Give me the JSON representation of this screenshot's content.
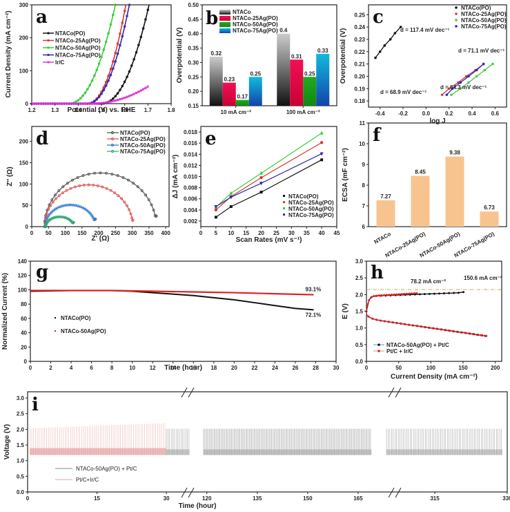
{
  "chart_data": [
    {
      "id": "a",
      "type": "line",
      "panel_label": "a",
      "xlabel": "Potential (V) vs. RHE",
      "ylabel": "Current Density (mA cm⁻²)",
      "xlim": [
        1.2,
        1.8
      ],
      "ylim": [
        0,
        300
      ],
      "xticks": [
        1.2,
        1.3,
        1.4,
        1.5,
        1.6,
        1.7,
        1.8
      ],
      "yticks": [
        0,
        100,
        200,
        300
      ],
      "legend": "top-left",
      "series": [
        {
          "name": "NTACo(PO)",
          "color": "#111111",
          "onset": 1.5,
          "end": 1.705,
          "endY": 300
        },
        {
          "name": "NTACo-25Ag(PO)",
          "color": "#e03030",
          "onset": 1.44,
          "end": 1.605,
          "endY": 300
        },
        {
          "name": "NTACo-50Ag(PO)",
          "color": "#33cc33",
          "onset": 1.36,
          "end": 1.56,
          "endY": 300
        },
        {
          "name": "NTACo-75Ag(PO)",
          "color": "#2a2ab0",
          "onset": 1.44,
          "end": 1.62,
          "endY": 300
        },
        {
          "name": "Ir/C",
          "color": "#dd33dd",
          "onset": 1.45,
          "end": 1.7,
          "endY": 52
        }
      ]
    },
    {
      "id": "b",
      "type": "bar",
      "panel_label": "b",
      "ylabel": "Overpotential (V)",
      "ylim": [
        0.15,
        0.5
      ],
      "yticks": [
        0.15,
        0.2,
        0.25,
        0.3,
        0.35,
        0.4,
        0.45,
        0.5
      ],
      "categories": [
        "10 mA cm⁻²",
        "100 mA cm⁻²"
      ],
      "legend": "top",
      "series": [
        {
          "name": "NTACo",
          "color": "#888888",
          "values": [
            0.32,
            0.4
          ]
        },
        {
          "name": "NTACo-25Ag(PO)",
          "color": "#ee1155",
          "values": [
            0.23,
            0.31
          ]
        },
        {
          "name": "NTACo-50Ag(PO)",
          "color": "#22aa22",
          "values": [
            0.17,
            0.25
          ]
        },
        {
          "name": "NTACo-75Ag(PO)",
          "color": "#11bbdd",
          "values": [
            0.25,
            0.33
          ]
        }
      ],
      "value_labels": [
        [
          "0.32",
          "0.4"
        ],
        [
          "0.23",
          "0.31"
        ],
        [
          "0.17",
          "0.25"
        ],
        [
          "0.25",
          "0.33"
        ]
      ]
    },
    {
      "id": "c",
      "type": "line",
      "panel_label": "c",
      "xlabel": "log J",
      "ylabel": "Overpotential (V)",
      "xlim": [
        -0.5,
        0.7
      ],
      "ylim": [
        0.175,
        0.258
      ],
      "xticks": [
        -0.4,
        -0.2,
        0.0,
        0.2,
        0.4,
        0.6
      ],
      "yticks": [
        0.18,
        0.19,
        0.2,
        0.21,
        0.22,
        0.23,
        0.24,
        0.25
      ],
      "legend": "top-right",
      "series": [
        {
          "name": "NTACo(PO)",
          "color": "#111111",
          "x": [
            -0.44,
            -0.4,
            -0.36,
            -0.31,
            -0.27,
            -0.22
          ],
          "y": [
            0.215,
            0.22,
            0.225,
            0.23,
            0.235,
            0.24
          ],
          "label": "d = 117.4 mV dec⁻¹"
        },
        {
          "name": "NTACo-25Ag(PO)",
          "color": "#dd3344",
          "x": [
            0.14,
            0.2,
            0.28,
            0.35,
            0.43,
            0.5
          ],
          "y": [
            0.185,
            0.19,
            0.195,
            0.2,
            0.205,
            0.21
          ],
          "label": "d = 68.9 mV dec⁻¹"
        },
        {
          "name": "NTACo-50Ag(PO)",
          "color": "#44cc44",
          "x": [
            0.22,
            0.3,
            0.37,
            0.44,
            0.51,
            0.58
          ],
          "y": [
            0.185,
            0.19,
            0.195,
            0.2,
            0.205,
            0.21
          ],
          "label": "d = 64.3 mV dec⁻¹"
        },
        {
          "name": "NTACo-75Ag(PO)",
          "color": "#2a2ab0",
          "x": [
            0.18,
            0.23,
            0.3,
            0.37,
            0.44,
            0.5
          ],
          "y": [
            0.185,
            0.19,
            0.195,
            0.2,
            0.205,
            0.21
          ],
          "label": "d = 71.1 mV dec⁻¹"
        }
      ]
    },
    {
      "id": "d",
      "type": "scatter",
      "panel_label": "d",
      "xlabel": "Z' (Ω)",
      "ylabel": "Z'' (Ω)",
      "xlim": [
        0,
        410
      ],
      "ylim": [
        0,
        235
      ],
      "xticks": [
        0,
        50,
        100,
        150,
        200,
        250,
        300,
        350,
        400
      ],
      "yticks": [
        0,
        50,
        100,
        150,
        200
      ],
      "legend": "top-right",
      "series": [
        {
          "name": "NTACo(PO)",
          "color": "#555555",
          "start": 38,
          "end": 372,
          "peak": 126,
          "endY": 25
        },
        {
          "name": "NTACo-25Ag(PO)",
          "color": "#dd5555",
          "start": 38,
          "end": 302,
          "peak": 98,
          "endY": 15
        },
        {
          "name": "NTACo-50Ag(PO)",
          "color": "#3377cc",
          "start": 40,
          "end": 190,
          "peak": 51,
          "endY": 18
        },
        {
          "name": "NTACo-75Ag(PO)",
          "color": "#33aa77",
          "start": 42,
          "end": 125,
          "peak": 23,
          "endY": 10
        }
      ]
    },
    {
      "id": "e",
      "type": "scatter",
      "panel_label": "e",
      "xlabel": "Scan Rates (mV s⁻¹)",
      "ylabel": "ΔJ (mA cm⁻²)",
      "xlim": [
        0,
        45
      ],
      "ylim": [
        0.001,
        0.019
      ],
      "xticks": [
        0,
        5,
        10,
        15,
        20,
        25,
        30,
        35,
        40,
        45
      ],
      "yticks": [
        0.002,
        0.004,
        0.006,
        0.008,
        0.01,
        0.012,
        0.014,
        0.016,
        0.018
      ],
      "legend": "bottom-right",
      "series": [
        {
          "name": "NTACo(PO)",
          "color": "#111111",
          "marker": "square",
          "x": [
            5,
            10,
            20,
            40
          ],
          "y": [
            0.0027,
            0.0046,
            0.0072,
            0.013
          ]
        },
        {
          "name": "NTACo-25Ag(PO)",
          "color": "#dd3333",
          "marker": "circle",
          "x": [
            5,
            10,
            20,
            40
          ],
          "y": [
            0.004,
            0.0064,
            0.0098,
            0.0161
          ]
        },
        {
          "name": "NTACo-50Ag(PO)",
          "color": "#33cc33",
          "marker": "triangle-up",
          "x": [
            5,
            10,
            20,
            40
          ],
          "y": [
            0.0045,
            0.007,
            0.0106,
            0.0178
          ]
        },
        {
          "name": "NTACo-75Ag(PO)",
          "color": "#2a2ab0",
          "marker": "triangle-down",
          "x": [
            5,
            10,
            20,
            40
          ],
          "y": [
            0.0046,
            0.0063,
            0.0088,
            0.0141
          ]
        }
      ]
    },
    {
      "id": "f",
      "type": "bar",
      "panel_label": "f",
      "ylabel": "ECSA (mF cm⁻²)",
      "ylim": [
        6,
        11
      ],
      "yticks": [
        6,
        7,
        8,
        9,
        10,
        11
      ],
      "categories": [
        "NTACo",
        "NTACo-25Ag(PO)",
        "NTACo-50Ag(PO)",
        "NTACo-75Ag(PO)"
      ],
      "values": [
        7.27,
        8.45,
        9.38,
        6.73
      ],
      "value_labels": [
        "7.27",
        "8.45",
        "9.38",
        "6.73"
      ],
      "color": "#f7c490"
    },
    {
      "id": "g",
      "type": "line",
      "panel_label": "g",
      "xlabel": "Time (hour)",
      "ylabel": "Normalized Current (%)",
      "xlim": [
        0,
        30
      ],
      "ylim": [
        0,
        140
      ],
      "xticks": [
        0,
        2,
        4,
        6,
        8,
        10,
        12,
        14,
        16,
        18,
        20,
        22,
        24,
        26,
        28,
        30
      ],
      "yticks": [
        0,
        20,
        40,
        60,
        80,
        100,
        120,
        140
      ],
      "legend": "middle-left",
      "series": [
        {
          "name": "NTACo(PO)",
          "color": "#111111",
          "x": [
            0,
            4,
            8,
            10,
            12,
            14,
            16,
            18,
            20,
            22,
            24,
            26,
            27.8
          ],
          "y": [
            98,
            99,
            99,
            98,
            96,
            94,
            92,
            89,
            86,
            82,
            78,
            74,
            72.1
          ],
          "end_label": "72.1%"
        },
        {
          "name": "NTACo-50Ag(PO)",
          "color": "#dd2222",
          "x": [
            0,
            8,
            12,
            16,
            20,
            24,
            27.8
          ],
          "y": [
            99,
            99,
            98,
            97,
            96,
            94.5,
            93.1
          ],
          "end_label": "93.1%"
        }
      ]
    },
    {
      "id": "h",
      "type": "line",
      "panel_label": "h",
      "xlabel": "Current Density (mA cm⁻²)",
      "ylabel": "E (V)",
      "xlim": [
        0,
        210
      ],
      "ylim": [
        0,
        3.0
      ],
      "xticks": [
        0,
        50,
        100,
        150,
        200
      ],
      "yticks": [
        0,
        0.5,
        1.0,
        1.5,
        2.0,
        2.5,
        3.0
      ],
      "legend": "bottom-left",
      "reference_line": 2.15,
      "annotations": [
        {
          "text": "78.2 mA cm⁻²",
          "color": "#cc3333"
        },
        {
          "text": "150.6 mA cm⁻²",
          "color": "#111111"
        }
      ],
      "series": [
        {
          "name": "NTACo-50Ag(PO) + Pt/C",
          "color": "#111111",
          "charge_end": 150.6,
          "discharge_end": 189
        },
        {
          "name": "Pt/C + Ir/C",
          "color": "#dd2222",
          "charge_end": 78.2,
          "discharge_end": 187
        }
      ]
    },
    {
      "id": "i",
      "type": "line",
      "panel_label": "i",
      "xlabel": "Time (hour)",
      "ylabel": "Voltage (V)",
      "ylim": [
        0,
        3.2
      ],
      "yticks": [
        0,
        0.5,
        1.0,
        1.5,
        2.0,
        2.5,
        3.0
      ],
      "xticks": [
        "0",
        "15",
        "30",
        "120",
        "135",
        "150",
        "165",
        "315",
        "330"
      ],
      "segments": [
        [
          0,
          37
        ],
        [
          118,
          172
        ],
        [
          300,
          330
        ]
      ],
      "legend": "bottom-left",
      "series": [
        {
          "name": "NTACo-50Ag(PO) + Pt/C",
          "color": "#888888",
          "high": 2.02,
          "low": 1.25
        },
        {
          "name": "Pt/C+Ir/C",
          "color": "#e8a0a0",
          "high_start": 2.03,
          "high_end": 2.2,
          "low": 1.28,
          "end_hour": 30
        }
      ]
    }
  ]
}
